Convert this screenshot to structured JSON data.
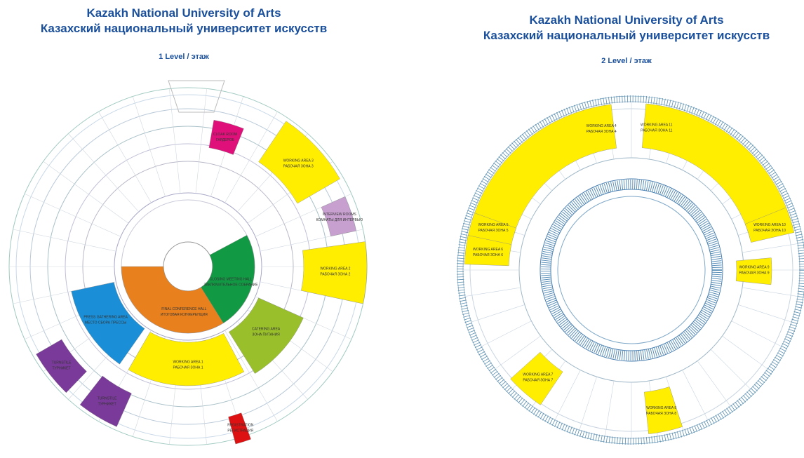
{
  "levels": [
    {
      "title_en": "Kazakh National University of Arts",
      "title_ru": "Казахский национальный университет искусств",
      "level": "1 Level / этаж",
      "zones": [
        {
          "label_en": "FINAL CONFERENCE HALL",
          "label_ru": "ИТОГОВАЯ КОНФЕРЕНЦИЯ"
        },
        {
          "label_en": "CLOSING MEETING HALL",
          "label_ru": "ЗАКЛЮЧИТЕЛЬНОЕ СОБРАНИЕ"
        },
        {
          "label_en": "PRESS GATHERING AREA",
          "label_ru": "МЕСТО СБОРА ПРЕССЫ"
        },
        {
          "label_en": "WORKING AREA 1",
          "label_ru": "РАБОЧАЯ ЗОНА 1"
        },
        {
          "label_en": "CATERING AREA",
          "label_ru": "ЗОНА ПИТАНИЯ"
        },
        {
          "label_en": "WORKING AREA 2",
          "label_ru": "РАБОЧАЯ ЗОНА 2"
        },
        {
          "label_en": "INTERVIEW ROOMS",
          "label_ru": "КОМНАТЫ ДЛЯ ИНТЕРВЬЮ"
        },
        {
          "label_en": "WORKING AREA 3",
          "label_ru": "РАБОЧАЯ ЗОНА 3"
        },
        {
          "label_en": "CLOAK ROOM",
          "label_ru": "ГАРДЕРОБ"
        },
        {
          "label_en": "TURNSTILE",
          "label_ru": "ТУРНИКЕТ"
        },
        {
          "label_en": "TURNSTILE",
          "label_ru": "ТУРНИКЕТ"
        },
        {
          "label_en": "REGISTRATION",
          "label_ru": "РЕГИСТРАЦИЯ"
        }
      ]
    },
    {
      "title_en": "Kazakh National University of Arts",
      "title_ru": "Казахский национальный университет искусств",
      "level": "2 Level / этаж",
      "zones": [
        {
          "label_en": "WORKING AREA 4",
          "label_ru": "РАБОЧАЯ ЗОНА 4"
        },
        {
          "label_en": "WORKING AREA 5",
          "label_ru": "РАБОЧАЯ ЗОНА 5"
        },
        {
          "label_en": "WORKING AREA 6",
          "label_ru": "РАБОЧАЯ ЗОНА 6"
        },
        {
          "label_en": "WORKING AREA 11",
          "label_ru": "РАБОЧАЯ ЗОНА 11"
        },
        {
          "label_en": "WORKING AREA 10",
          "label_ru": "РАБОЧАЯ ЗОНА 10"
        },
        {
          "label_en": "WORKING AREA 9",
          "label_ru": "РАБОЧАЯ ЗОНА 9"
        },
        {
          "label_en": "WORKING AREA 7",
          "label_ru": "РАБОЧАЯ ЗОНА 7"
        },
        {
          "label_en": "WORKING AREA 8",
          "label_ru": "РАБОЧАЯ ЗОНА 8"
        }
      ]
    }
  ]
}
